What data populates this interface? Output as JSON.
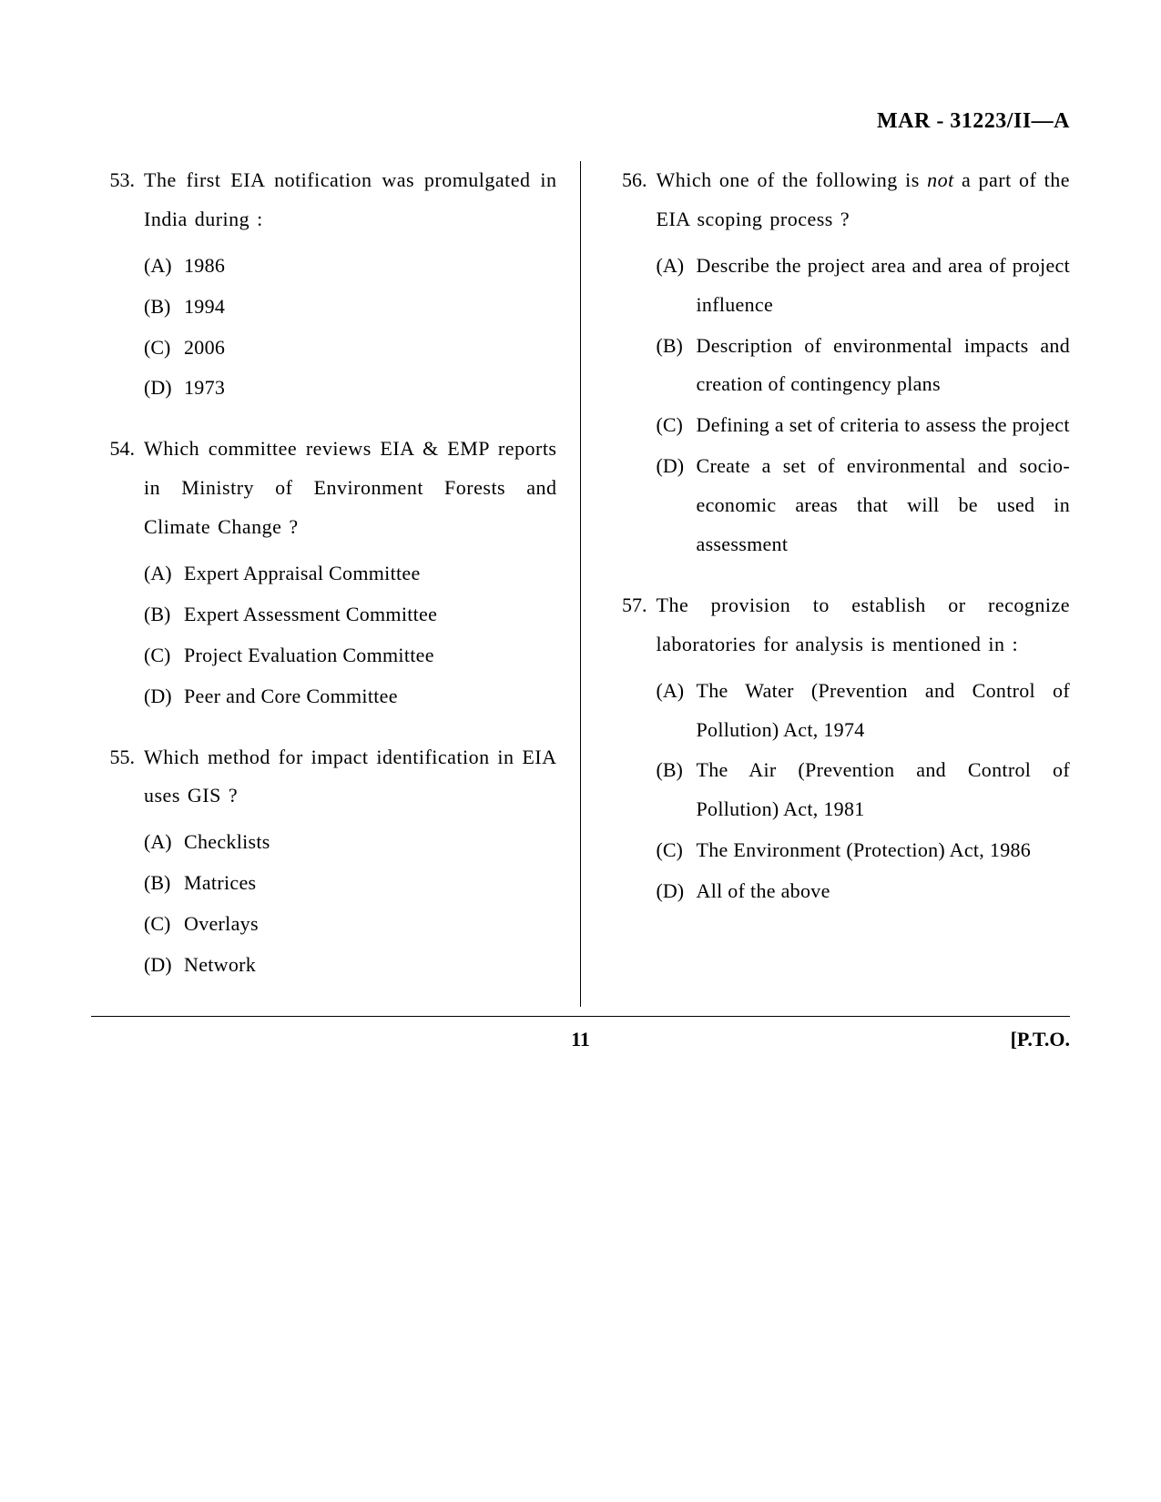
{
  "header": {
    "code": "MAR - 31223/II—A"
  },
  "questions_left": [
    {
      "number": "53.",
      "text": "The first EIA notification was promulgated in India during :",
      "options": [
        {
          "label": "(A)",
          "text": "1986"
        },
        {
          "label": "(B)",
          "text": "1994"
        },
        {
          "label": "(C)",
          "text": "2006"
        },
        {
          "label": "(D)",
          "text": "1973"
        }
      ]
    },
    {
      "number": "54.",
      "text": "Which committee reviews EIA & EMP reports in Ministry of Environment Forests and Climate Change ?",
      "options": [
        {
          "label": "(A)",
          "text": "Expert Appraisal Committee"
        },
        {
          "label": "(B)",
          "text": "Expert Assessment Committee"
        },
        {
          "label": "(C)",
          "text": "Project Evaluation Committee"
        },
        {
          "label": "(D)",
          "text": "Peer and Core Committee"
        }
      ]
    },
    {
      "number": "55.",
      "text": "Which method for impact identification in EIA uses GIS ?",
      "options": [
        {
          "label": "(A)",
          "text": "Checklists"
        },
        {
          "label": "(B)",
          "text": "Matrices"
        },
        {
          "label": "(C)",
          "text": "Overlays"
        },
        {
          "label": "(D)",
          "text": "Network"
        }
      ]
    }
  ],
  "questions_right": [
    {
      "number": "56.",
      "text_pre": "Which one of the following is ",
      "text_italic": "not",
      "text_post": " a part of the EIA scoping process ?",
      "options": [
        {
          "label": "(A)",
          "text": "Describe the project area and area of project influence"
        },
        {
          "label": "(B)",
          "text": "Description of environmental impacts and creation of contingency plans"
        },
        {
          "label": "(C)",
          "text": "Defining a set of criteria to assess the project"
        },
        {
          "label": "(D)",
          "text": "Create a set of environmental and socio-economic areas that will be used in assessment"
        }
      ]
    },
    {
      "number": "57.",
      "text": "The provision to establish or recognize laboratories for analysis is mentioned in :",
      "options": [
        {
          "label": "(A)",
          "text": "The Water (Prevention and Control of Pollution) Act, 1974"
        },
        {
          "label": "(B)",
          "text": "The Air (Prevention and Control of Pollution) Act, 1981"
        },
        {
          "label": "(C)",
          "text": "The Environment (Protection) Act, 1986"
        },
        {
          "label": "(D)",
          "text": "All of the above"
        }
      ]
    }
  ],
  "footer": {
    "page_number": "11",
    "pto": "[P.T.O."
  }
}
